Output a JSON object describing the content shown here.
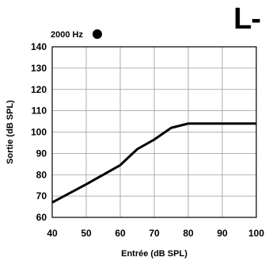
{
  "corner_label": "L-",
  "chart_data": {
    "type": "line",
    "xlabel": "Entrée (dB SPL)",
    "ylabel": "Sortie (dB SPL)",
    "xlim": [
      40,
      100
    ],
    "ylim": [
      60,
      140
    ],
    "xticks": [
      40,
      50,
      60,
      70,
      80,
      90,
      100
    ],
    "yticks": [
      60,
      70,
      80,
      90,
      100,
      110,
      120,
      130,
      140
    ],
    "grid": true,
    "legend": {
      "label": "2000 Hz",
      "marker": "filled-circle",
      "placement": "top-left"
    },
    "series": [
      {
        "x": [
          40,
          50,
          60,
          65,
          70,
          75,
          80,
          90,
          100
        ],
        "y": [
          67,
          75.5,
          84.5,
          92,
          96.5,
          102,
          104,
          104,
          104
        ],
        "color": "#000000"
      }
    ]
  }
}
